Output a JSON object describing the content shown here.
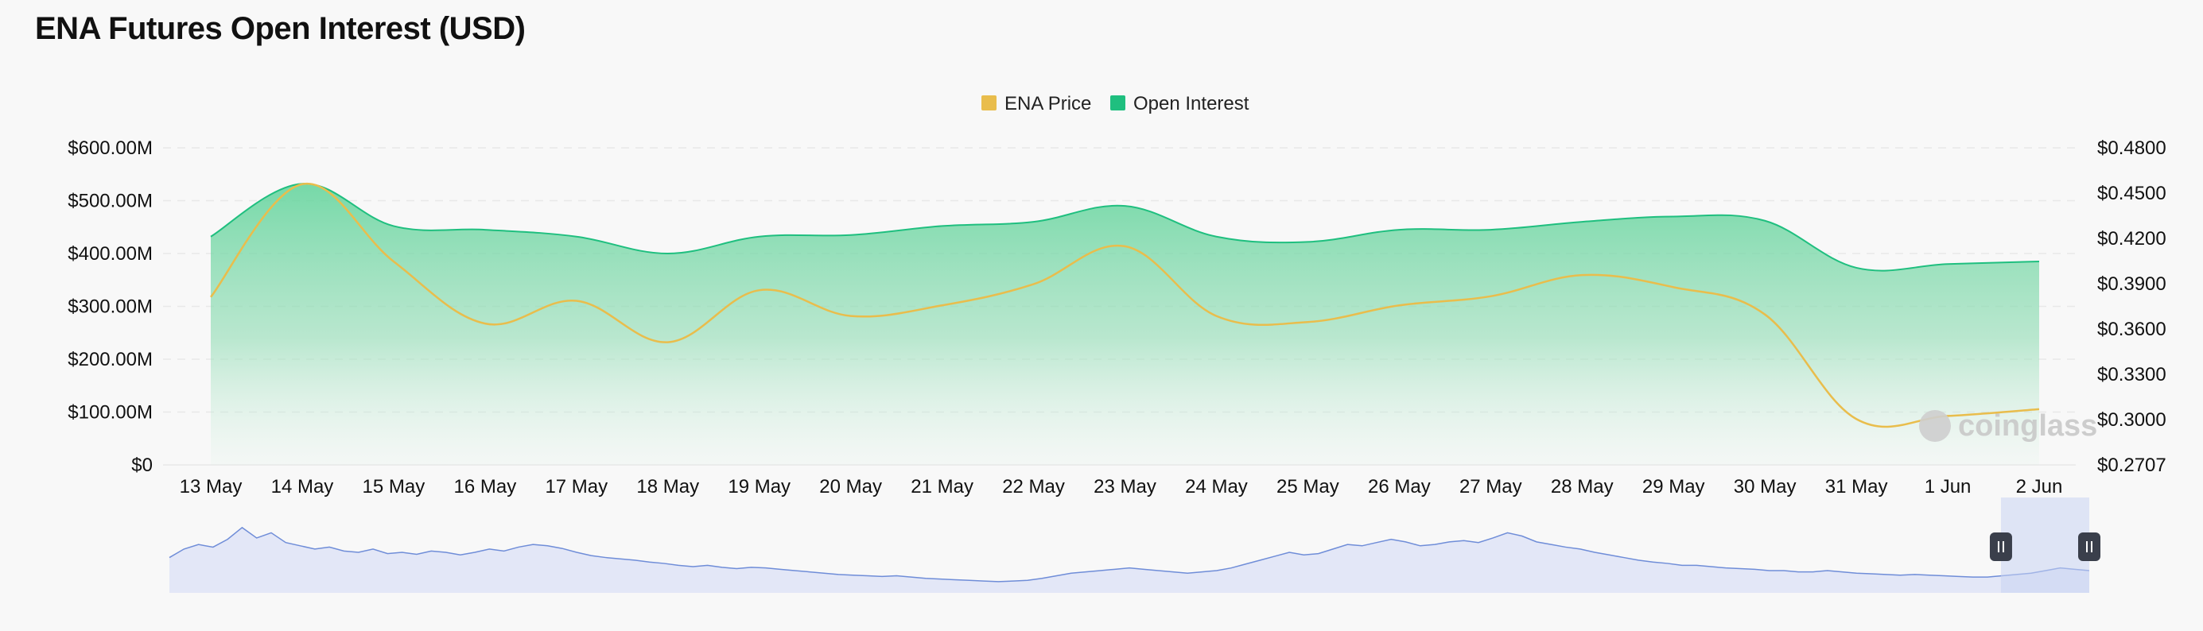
{
  "title": "ENA Futures Open Interest (USD)",
  "watermark": "coinglass",
  "colors": {
    "price": "#e9bd4c",
    "open_interest": "#1fbf7f",
    "navigator_fill": "#e3e7f7",
    "navigator_line": "#6f8dd8",
    "grid": "#e8e8e8",
    "handle": "#3a3f4b"
  },
  "chart_data": {
    "type": "area",
    "categories": [
      "13 May",
      "14 May",
      "15 May",
      "16 May",
      "17 May",
      "18 May",
      "19 May",
      "20 May",
      "21 May",
      "22 May",
      "23 May",
      "24 May",
      "25 May",
      "26 May",
      "27 May",
      "28 May",
      "29 May",
      "30 May",
      "31 May",
      "1 Jun",
      "2 Jun"
    ],
    "legend": [
      "ENA Price",
      "Open Interest"
    ],
    "legend_position": "top-center",
    "grid": true,
    "y_left": {
      "ylim": [
        0,
        600000000
      ],
      "ticks": [
        "$0",
        "$100.00M",
        "$200.00M",
        "$300.00M",
        "$400.00M",
        "$500.00M",
        "$600.00M"
      ]
    },
    "y_right": {
      "ylim": [
        0.2707,
        0.48
      ],
      "ticks": [
        "$0.2707",
        "$0.3000",
        "$0.3300",
        "$0.3600",
        "$0.3900",
        "$0.4200",
        "$0.4500",
        "$0.4800"
      ]
    },
    "series": [
      {
        "name": "Open Interest",
        "type": "area",
        "axis": "left",
        "values": [
          432000000,
          532000000,
          452000000,
          445000000,
          432000000,
          400000000,
          432000000,
          435000000,
          452000000,
          460000000,
          490000000,
          432000000,
          422000000,
          445000000,
          445000000,
          460000000,
          470000000,
          462000000,
          373000000,
          380000000,
          385000000
        ]
      },
      {
        "name": "ENA Price",
        "type": "line",
        "axis": "right",
        "values": [
          0.3815,
          0.456,
          0.405,
          0.364,
          0.379,
          0.3517,
          0.386,
          0.369,
          0.376,
          0.39,
          0.415,
          0.369,
          0.365,
          0.376,
          0.382,
          0.396,
          0.388,
          0.37,
          0.301,
          0.303,
          0.3075
        ]
      }
    ],
    "navigator": {
      "values": [
        0.42,
        0.55,
        0.62,
        0.58,
        0.7,
        0.88,
        0.72,
        0.8,
        0.65,
        0.6,
        0.55,
        0.58,
        0.52,
        0.5,
        0.55,
        0.48,
        0.5,
        0.47,
        0.52,
        0.5,
        0.46,
        0.5,
        0.55,
        0.52,
        0.58,
        0.62,
        0.6,
        0.56,
        0.5,
        0.45,
        0.42,
        0.4,
        0.38,
        0.35,
        0.33,
        0.3,
        0.28,
        0.3,
        0.27,
        0.25,
        0.27,
        0.26,
        0.24,
        0.22,
        0.2,
        0.18,
        0.16,
        0.15,
        0.14,
        0.13,
        0.14,
        0.12,
        0.1,
        0.09,
        0.08,
        0.07,
        0.06,
        0.05,
        0.06,
        0.07,
        0.1,
        0.14,
        0.18,
        0.2,
        0.22,
        0.24,
        0.26,
        0.24,
        0.22,
        0.2,
        0.18,
        0.2,
        0.22,
        0.26,
        0.32,
        0.38,
        0.44,
        0.5,
        0.46,
        0.48,
        0.55,
        0.62,
        0.6,
        0.65,
        0.7,
        0.66,
        0.6,
        0.62,
        0.66,
        0.68,
        0.65,
        0.72,
        0.8,
        0.75,
        0.66,
        0.62,
        0.58,
        0.55,
        0.5,
        0.46,
        0.42,
        0.38,
        0.35,
        0.33,
        0.3,
        0.3,
        0.28,
        0.26,
        0.25,
        0.24,
        0.22,
        0.22,
        0.2,
        0.2,
        0.22,
        0.2,
        0.18,
        0.17,
        0.16,
        0.15,
        0.16,
        0.15,
        0.14,
        0.13,
        0.12,
        0.12,
        0.14,
        0.16,
        0.18,
        0.22,
        0.26,
        0.24,
        0.22
      ],
      "selection": [
        0.954,
        1.0
      ]
    }
  }
}
